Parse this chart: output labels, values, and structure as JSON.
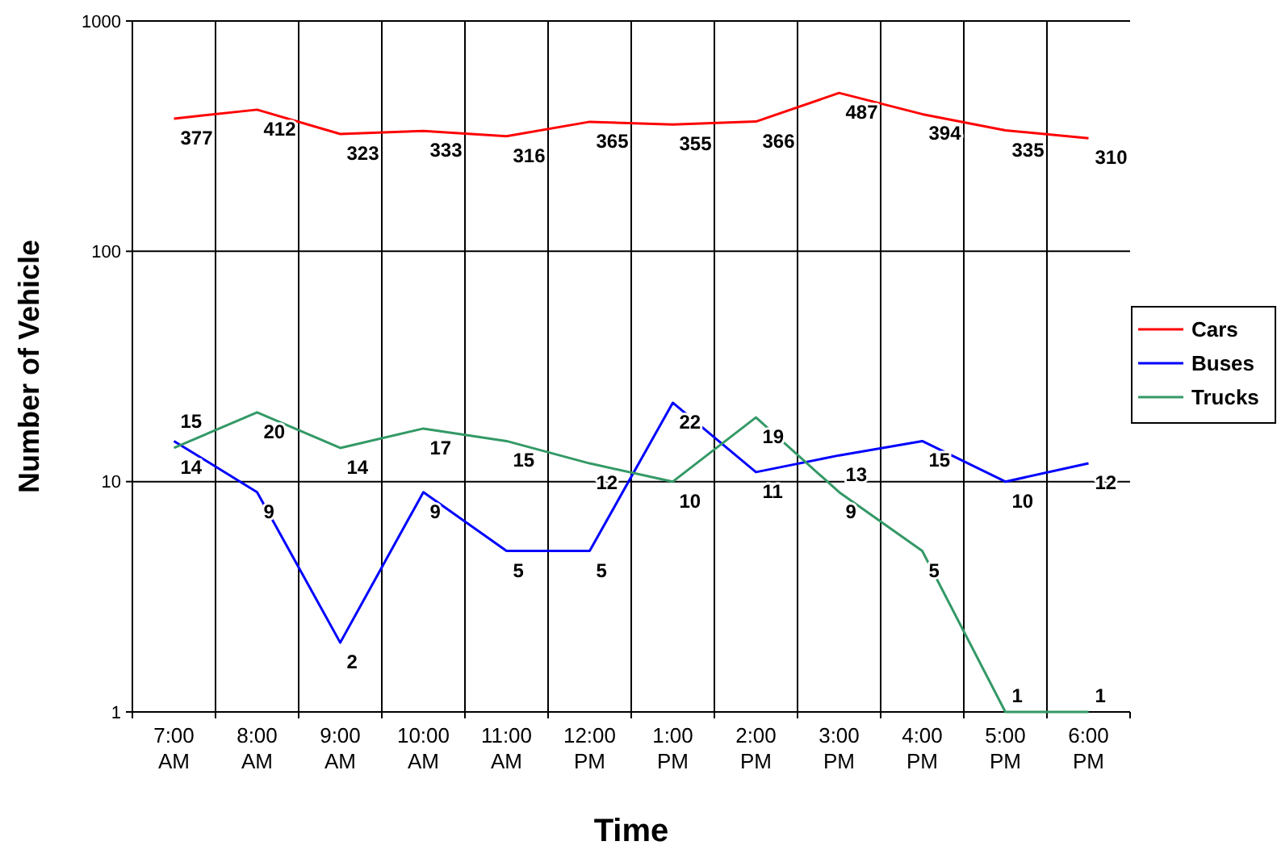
{
  "chart_data": {
    "type": "line",
    "xlabel": "Time",
    "ylabel": "Number of Vehicle",
    "categories": [
      "7:00 AM",
      "8:00 AM",
      "9:00 AM",
      "10:00 AM",
      "11:00 AM",
      "12:00 PM",
      "1:00 PM",
      "2:00 PM",
      "3:00 PM",
      "4:00 PM",
      "5:00 PM",
      "6:00 PM"
    ],
    "series": [
      {
        "name": "Cars",
        "color": "#ff0000",
        "values": [
          377,
          412,
          323,
          333,
          316,
          365,
          355,
          366,
          487,
          394,
          335,
          310
        ]
      },
      {
        "name": "Buses",
        "color": "#0000ff",
        "values": [
          15,
          9,
          2,
          9,
          5,
          5,
          22,
          11,
          13,
          15,
          10,
          12
        ]
      },
      {
        "name": "Trucks",
        "color": "#339966",
        "values": [
          14,
          20,
          14,
          17,
          15,
          12,
          10,
          19,
          9,
          5,
          1,
          1
        ]
      }
    ],
    "log": "y",
    "ylim": [
      1,
      1000
    ],
    "yticks": [
      1,
      10,
      100,
      1000
    ],
    "grid": true,
    "legend": "right",
    "data_labels": true,
    "marker": "none",
    "line_style": "solid"
  }
}
